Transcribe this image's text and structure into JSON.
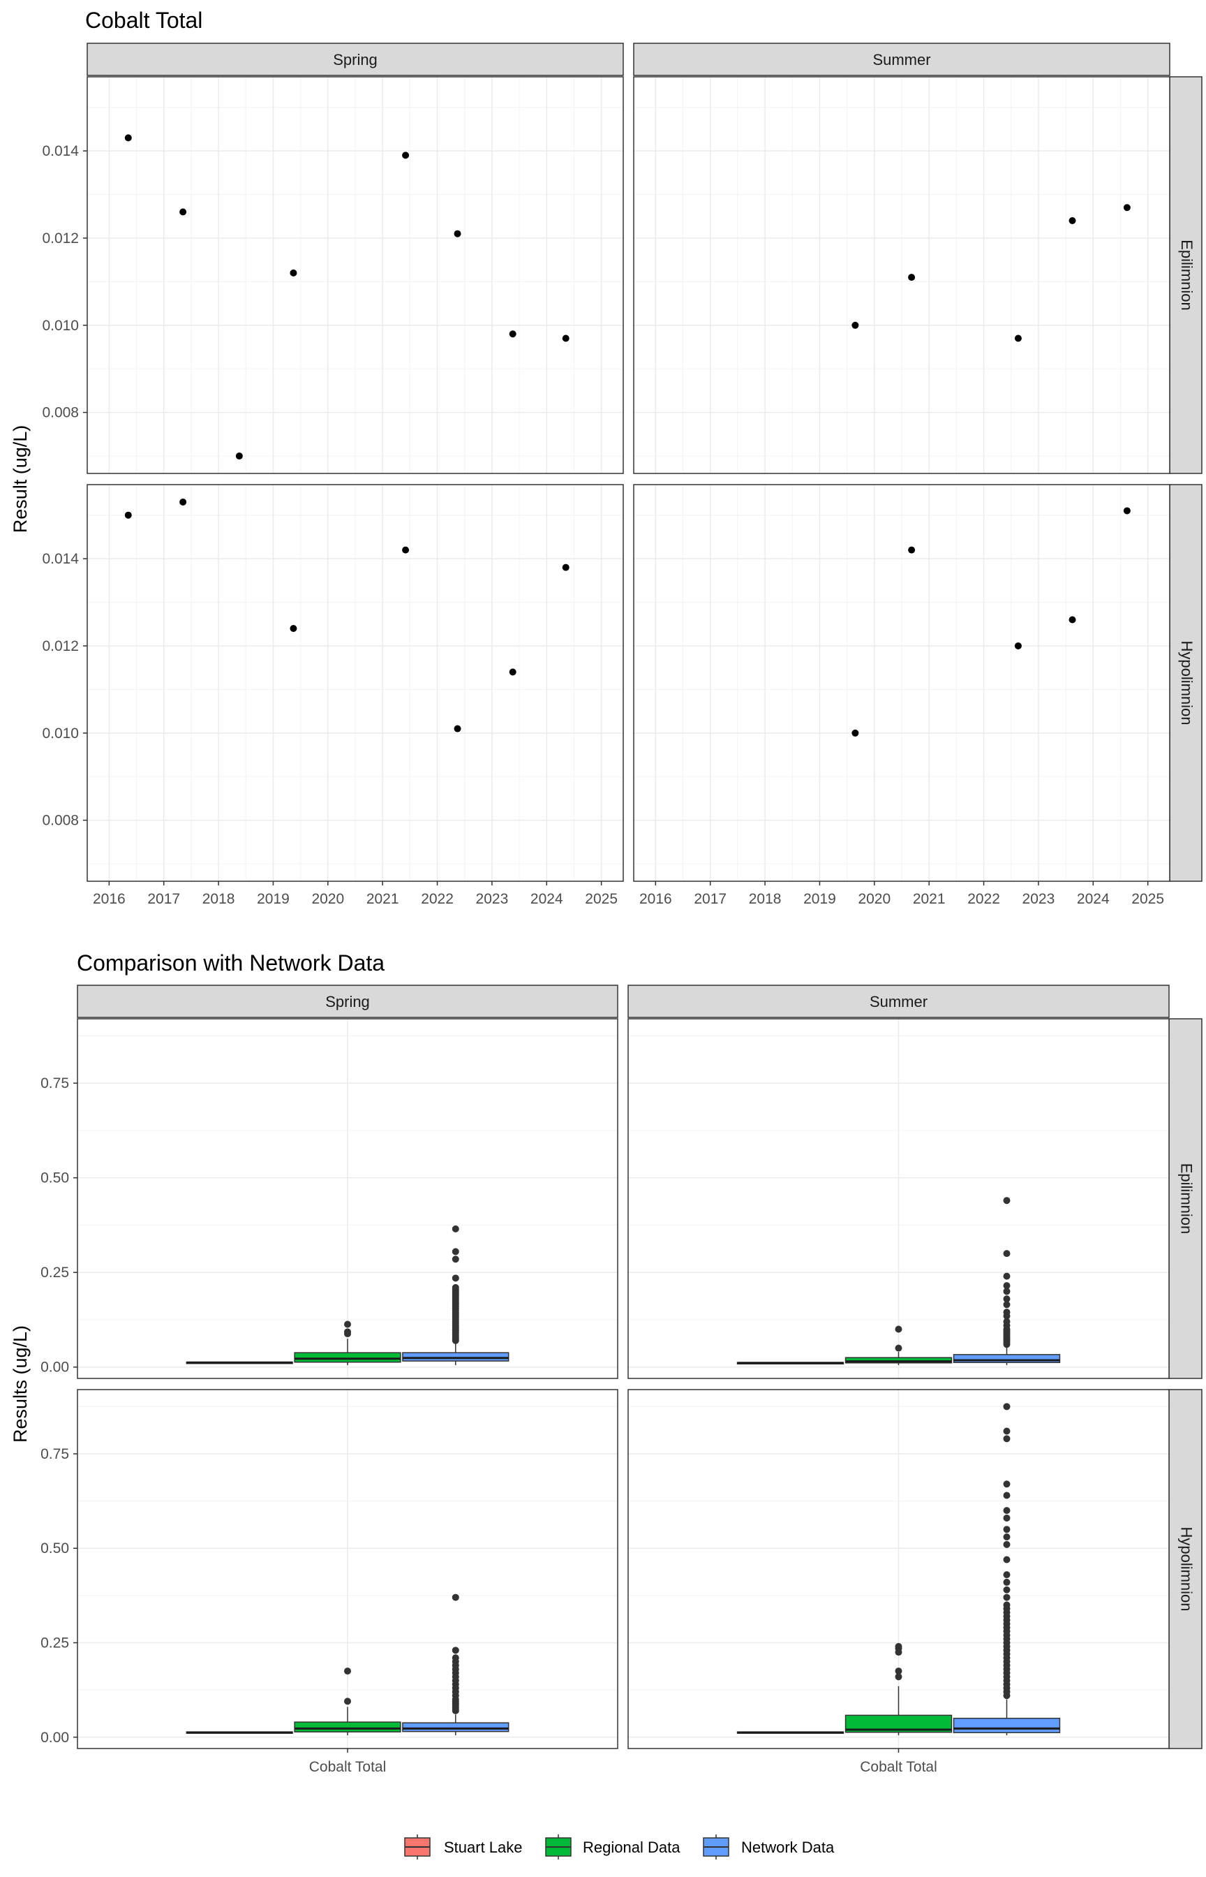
{
  "colors": {
    "panel_border": "#333333",
    "strip_fill": "#d9d9d9",
    "grid_major": "#ebebeb",
    "grid_minor": "#f5f5f5",
    "point": "#000000",
    "outlier": "#333333",
    "axis_text": "#4d4d4d",
    "title_text": "#000000"
  },
  "chart_data": [
    {
      "type": "scatter",
      "title": "Cobalt Total",
      "ylabel": "Result (ug/L)",
      "facet_cols": [
        "Spring",
        "Summer"
      ],
      "facet_rows": [
        "Epilimnion",
        "Hypolimnion"
      ],
      "xlim": [
        2015.6,
        2025.4
      ],
      "ylim": [
        0.0066,
        0.0157
      ],
      "xticks": [
        "2016",
        "2017",
        "2018",
        "2019",
        "2020",
        "2021",
        "2022",
        "2023",
        "2024",
        "2025"
      ],
      "yticks": [
        "0.008",
        "0.010",
        "0.012",
        "0.014"
      ],
      "panels": [
        {
          "col": "Spring",
          "row": "Epilimnion",
          "x": [
            2016.35,
            2017.35,
            2018.38,
            2019.37,
            2021.42,
            2022.37,
            2023.38,
            2024.35
          ],
          "y": [
            0.0143,
            0.0126,
            0.007,
            0.0112,
            0.0139,
            0.0121,
            0.0098,
            0.0097
          ]
        },
        {
          "col": "Summer",
          "row": "Epilimnion",
          "x": [
            2019.65,
            2020.68,
            2022.63,
            2023.62,
            2024.62
          ],
          "y": [
            0.01,
            0.0111,
            0.0097,
            0.0124,
            0.0127
          ]
        },
        {
          "col": "Spring",
          "row": "Hypolimnion",
          "x": [
            2016.35,
            2017.35,
            2019.37,
            2021.42,
            2022.37,
            2023.38,
            2024.35
          ],
          "y": [
            0.015,
            0.0153,
            0.0124,
            0.0142,
            0.0101,
            0.0114,
            0.0138
          ]
        },
        {
          "col": "Summer",
          "row": "Hypolimnion",
          "x": [
            2019.65,
            2020.68,
            2022.63,
            2023.62,
            2024.62
          ],
          "y": [
            0.01,
            0.0142,
            0.012,
            0.0126,
            0.0151
          ]
        }
      ]
    },
    {
      "type": "box",
      "title": "Comparison with Network Data",
      "ylabel": "Results (ug/L)",
      "facet_cols": [
        "Spring",
        "Summer"
      ],
      "facet_rows": [
        "Epilimnion",
        "Hypolimnion"
      ],
      "categories": [
        "Cobalt Total"
      ],
      "ylim": [
        -0.03,
        0.92
      ],
      "yticks": [
        "0.00",
        "0.25",
        "0.50",
        "0.75"
      ],
      "legend": {
        "position": "bottom",
        "entries": [
          {
            "name": "Stuart Lake",
            "color": "#F8766D"
          },
          {
            "name": "Regional Data",
            "color": "#00BA38"
          },
          {
            "name": "Network Data",
            "color": "#619CFF"
          }
        ]
      },
      "panels": [
        {
          "col": "Spring",
          "row": "Epilimnion",
          "series": [
            {
              "name": "Stuart Lake",
              "min": 0.01,
              "q1": 0.011,
              "median": 0.012,
              "q3": 0.013,
              "max": 0.014,
              "outliers": []
            },
            {
              "name": "Regional Data",
              "min": 0.005,
              "q1": 0.013,
              "median": 0.022,
              "q3": 0.038,
              "max": 0.075,
              "outliers": [
                0.088,
                0.093,
                0.113
              ]
            },
            {
              "name": "Network Data",
              "min": 0.005,
              "q1": 0.016,
              "median": 0.024,
              "q3": 0.038,
              "max": 0.065,
              "outliers": [
                0.07,
                0.075,
                0.08,
                0.085,
                0.09,
                0.095,
                0.1,
                0.105,
                0.11,
                0.115,
                0.12,
                0.125,
                0.13,
                0.135,
                0.14,
                0.145,
                0.15,
                0.155,
                0.16,
                0.165,
                0.17,
                0.175,
                0.18,
                0.185,
                0.19,
                0.195,
                0.2,
                0.205,
                0.21,
                0.235,
                0.285,
                0.305,
                0.365
              ]
            }
          ]
        },
        {
          "col": "Summer",
          "row": "Epilimnion",
          "series": [
            {
              "name": "Stuart Lake",
              "min": 0.009,
              "q1": 0.0095,
              "median": 0.011,
              "q3": 0.012,
              "max": 0.013,
              "outliers": []
            },
            {
              "name": "Regional Data",
              "min": 0.005,
              "q1": 0.011,
              "median": 0.015,
              "q3": 0.025,
              "max": 0.04,
              "outliers": [
                0.05,
                0.1
              ]
            },
            {
              "name": "Network Data",
              "min": 0.005,
              "q1": 0.012,
              "median": 0.018,
              "q3": 0.033,
              "max": 0.055,
              "outliers": [
                0.06,
                0.065,
                0.07,
                0.075,
                0.08,
                0.085,
                0.09,
                0.095,
                0.1,
                0.11,
                0.12,
                0.135,
                0.145,
                0.165,
                0.18,
                0.2,
                0.215,
                0.24,
                0.3,
                0.44
              ]
            }
          ]
        },
        {
          "col": "Spring",
          "row": "Hypolimnion",
          "series": [
            {
              "name": "Stuart Lake",
              "min": 0.01,
              "q1": 0.011,
              "median": 0.0125,
              "q3": 0.014,
              "max": 0.015,
              "outliers": []
            },
            {
              "name": "Regional Data",
              "min": 0.005,
              "q1": 0.014,
              "median": 0.023,
              "q3": 0.04,
              "max": 0.08,
              "outliers": [
                0.095,
                0.175
              ]
            },
            {
              "name": "Network Data",
              "min": 0.005,
              "q1": 0.015,
              "median": 0.023,
              "q3": 0.038,
              "max": 0.06,
              "outliers": [
                0.07,
                0.075,
                0.08,
                0.085,
                0.09,
                0.095,
                0.1,
                0.11,
                0.12,
                0.13,
                0.14,
                0.15,
                0.16,
                0.17,
                0.18,
                0.19,
                0.2,
                0.21,
                0.23,
                0.37
              ]
            }
          ]
        },
        {
          "col": "Summer",
          "row": "Hypolimnion",
          "series": [
            {
              "name": "Stuart Lake",
              "min": 0.01,
              "q1": 0.011,
              "median": 0.0125,
              "q3": 0.014,
              "max": 0.015,
              "outliers": []
            },
            {
              "name": "Regional Data",
              "min": 0.005,
              "q1": 0.013,
              "median": 0.02,
              "q3": 0.058,
              "max": 0.135,
              "outliers": [
                0.16,
                0.175,
                0.225,
                0.235,
                0.24
              ]
            },
            {
              "name": "Network Data",
              "min": 0.005,
              "q1": 0.012,
              "median": 0.023,
              "q3": 0.05,
              "max": 0.1,
              "outliers": [
                0.11,
                0.12,
                0.13,
                0.14,
                0.15,
                0.16,
                0.17,
                0.18,
                0.19,
                0.2,
                0.21,
                0.22,
                0.23,
                0.24,
                0.25,
                0.26,
                0.27,
                0.28,
                0.29,
                0.3,
                0.31,
                0.32,
                0.33,
                0.34,
                0.35,
                0.37,
                0.39,
                0.41,
                0.43,
                0.47,
                0.51,
                0.53,
                0.55,
                0.58,
                0.6,
                0.64,
                0.67,
                0.79,
                0.81,
                0.875
              ]
            }
          ]
        }
      ]
    }
  ]
}
